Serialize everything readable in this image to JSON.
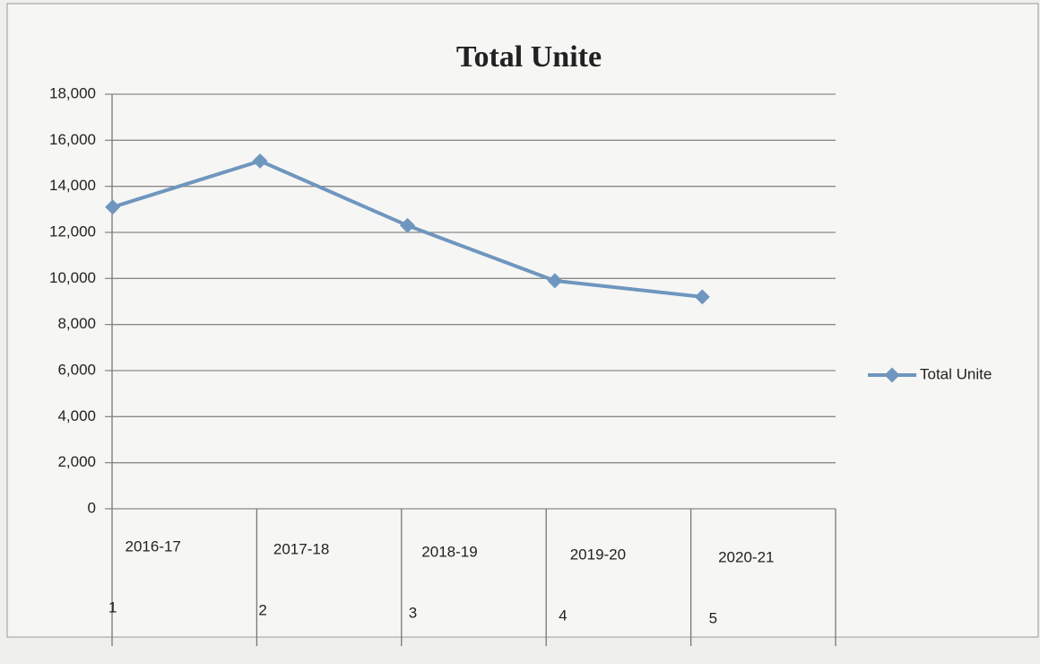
{
  "chart_data": {
    "type": "line",
    "title": "Total Unite",
    "categories": [
      "2016-17",
      "2017-18",
      "2018-19",
      "2019-20",
      "2020-21"
    ],
    "category_numbers": [
      1,
      2,
      3,
      4,
      5
    ],
    "series": [
      {
        "name": "Total Unite",
        "color": "#6f96be",
        "values": [
          13100,
          15100,
          12300,
          9900,
          9200
        ]
      }
    ],
    "ylim": [
      0,
      18000
    ],
    "yticks": [
      0,
      {
        "value": 2000,
        "label": "2,000"
      },
      {
        "value": 4000,
        "label": "4,000"
      },
      {
        "value": 6000,
        "label": "6,000"
      },
      {
        "value": 8000,
        "label": "8,000"
      },
      {
        "value": 10000,
        "label": "10,000"
      },
      {
        "value": 12000,
        "label": "12,000"
      },
      {
        "value": 14000,
        "label": "14,000"
      },
      {
        "value": 16000,
        "label": "16,000"
      },
      {
        "value": 18000,
        "label": "18,000"
      }
    ],
    "grid": true,
    "legend": "right"
  }
}
